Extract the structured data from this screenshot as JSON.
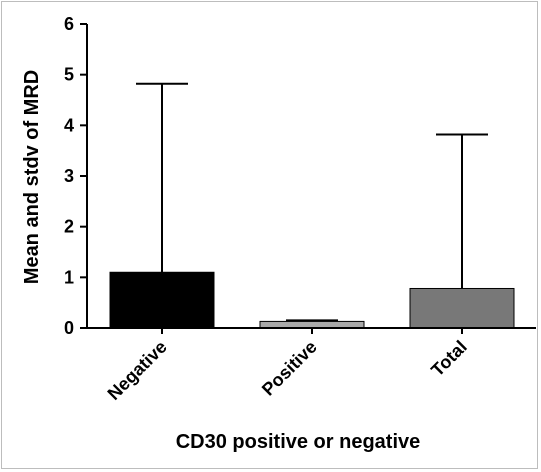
{
  "chart_data": {
    "type": "bar",
    "categories": [
      "Negative",
      "Positive",
      "Total"
    ],
    "values": [
      1.1,
      0.13,
      0.78
    ],
    "error_upper": [
      4.82,
      0.15,
      3.82
    ],
    "colors": [
      "#000000",
      "#a9a9a9",
      "#787878"
    ],
    "xlabel": "CD30 positive or negative",
    "ylabel": "Mean and stdv of MRD",
    "ylim": [
      0,
      6
    ],
    "yticks": [
      0,
      1,
      2,
      3,
      4,
      5,
      6
    ],
    "grid": false
  }
}
